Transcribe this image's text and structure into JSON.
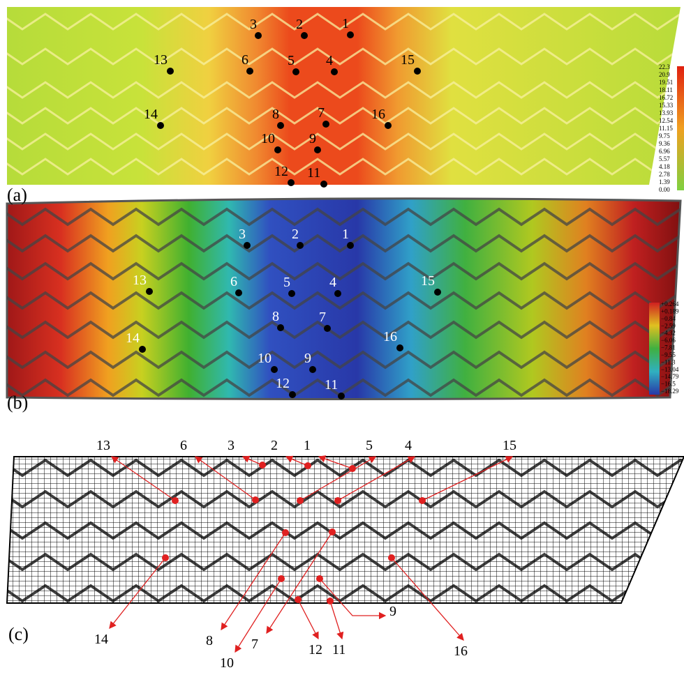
{
  "panels": [
    {
      "label": "(a)",
      "points": [
        "1",
        "2",
        "3",
        "4",
        "5",
        "6",
        "7",
        "8",
        "9",
        "10",
        "11",
        "12",
        "13",
        "14",
        "15",
        "16"
      ],
      "colorbar": [
        "22.3",
        "20.9",
        "19.51",
        "18.11",
        "16.72",
        "15.33",
        "13.93",
        "12.54",
        "11.15",
        "9.75",
        "9.36",
        "6.96",
        "5.57",
        "4.18",
        "2.78",
        "1.39",
        "0.00"
      ]
    },
    {
      "label": "(b)",
      "points": [
        "1",
        "2",
        "3",
        "4",
        "5",
        "6",
        "7",
        "8",
        "9",
        "10",
        "11",
        "12",
        "13",
        "14",
        "15",
        "16"
      ],
      "colorbar": [
        "+0.264",
        "+0.189",
        "−0.84",
        "−2.59",
        "−4.32",
        "−6.06",
        "−7.81",
        "−9.55",
        "−11.3",
        "−13.04",
        "−14.79",
        "−16.5",
        "−18.29"
      ]
    },
    {
      "label": "(c)",
      "points": [
        "1",
        "2",
        "3",
        "4",
        "5",
        "6",
        "7",
        "8",
        "9",
        "10",
        "11",
        "12",
        "13",
        "14",
        "15",
        "16"
      ]
    }
  ]
}
